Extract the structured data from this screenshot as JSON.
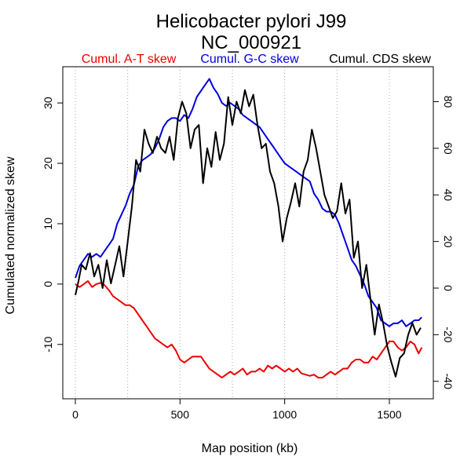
{
  "chart_data": {
    "type": "line",
    "title": "Helicobacter pylori J99",
    "subtitle": "NC_000921",
    "xlabel": "Map position (kb)",
    "ylabel": "Cumulated normalized skew",
    "xlim": [
      -60,
      1710
    ],
    "ylim": [
      -19,
      36
    ],
    "y2lim": [
      -47.5,
      95
    ],
    "x_ticks": [
      0,
      500,
      1000,
      1500
    ],
    "y_ticks": [
      -10,
      0,
      10,
      20,
      30
    ],
    "y2_ticks": [
      -40,
      -20,
      0,
      20,
      40,
      60,
      80
    ],
    "vgrid": [
      0,
      250,
      500,
      750,
      1000,
      1250,
      1500
    ],
    "grid": "vertical-dotted",
    "series": [
      {
        "name": "Cumul. A-T skew",
        "color": "#ee0000",
        "axis": "left",
        "x": [
          0,
          20,
          40,
          60,
          80,
          100,
          120,
          140,
          160,
          180,
          200,
          220,
          240,
          260,
          280,
          300,
          320,
          340,
          360,
          380,
          400,
          420,
          440,
          460,
          480,
          500,
          520,
          540,
          560,
          580,
          600,
          620,
          640,
          660,
          680,
          700,
          720,
          740,
          760,
          780,
          800,
          820,
          840,
          860,
          880,
          900,
          920,
          940,
          960,
          980,
          1000,
          1020,
          1040,
          1060,
          1080,
          1100,
          1120,
          1140,
          1160,
          1180,
          1200,
          1220,
          1240,
          1260,
          1280,
          1300,
          1320,
          1340,
          1360,
          1380,
          1400,
          1420,
          1440,
          1460,
          1480,
          1500,
          1520,
          1540,
          1560,
          1580,
          1600,
          1620,
          1640,
          1655
        ],
        "values": [
          0,
          -0.5,
          0,
          0.5,
          -0.5,
          0,
          0.2,
          -0.2,
          -1,
          -2,
          -2.5,
          -3,
          -3.5,
          -3.5,
          -4,
          -5,
          -6,
          -7,
          -8,
          -9,
          -9.5,
          -10,
          -10.5,
          -10,
          -11,
          -12.5,
          -13,
          -12.5,
          -12,
          -12,
          -12,
          -13,
          -14,
          -14.5,
          -15,
          -15.5,
          -15,
          -14.5,
          -15,
          -14.5,
          -14,
          -15,
          -14.5,
          -14.5,
          -14,
          -14.5,
          -13.5,
          -14,
          -13.5,
          -14,
          -14.5,
          -14,
          -14.5,
          -14,
          -14.8,
          -15,
          -15.2,
          -15,
          -15.5,
          -15.5,
          -15,
          -14.5,
          -15,
          -14.5,
          -14,
          -14,
          -13,
          -12.5,
          -12.5,
          -13,
          -13,
          -12,
          -12.5,
          -11.5,
          -10.5,
          -9.5,
          -9.5,
          -10.5,
          -11,
          -10.5,
          -9.5,
          -10,
          -11.5,
          -10.5
        ]
      },
      {
        "name": "Cumul. G-C skew",
        "color": "#0000dd",
        "axis": "left",
        "x": [
          0,
          20,
          40,
          60,
          80,
          100,
          120,
          140,
          160,
          180,
          200,
          220,
          240,
          260,
          280,
          300,
          320,
          340,
          360,
          380,
          400,
          420,
          440,
          460,
          480,
          500,
          520,
          540,
          560,
          580,
          600,
          620,
          640,
          660,
          680,
          700,
          720,
          740,
          760,
          780,
          800,
          820,
          840,
          860,
          880,
          900,
          920,
          940,
          960,
          980,
          1000,
          1020,
          1040,
          1060,
          1080,
          1100,
          1120,
          1140,
          1160,
          1180,
          1200,
          1220,
          1240,
          1260,
          1280,
          1300,
          1320,
          1340,
          1360,
          1380,
          1400,
          1420,
          1440,
          1460,
          1480,
          1500,
          1520,
          1540,
          1560,
          1580,
          1600,
          1620,
          1640,
          1655
        ],
        "values": [
          1,
          3,
          4,
          5,
          4.5,
          5,
          4.5,
          5.5,
          6.5,
          7.5,
          10,
          11.5,
          13,
          15,
          16.5,
          19.5,
          20.5,
          21,
          21.5,
          22.5,
          24,
          26,
          27,
          27.5,
          27.5,
          27,
          28,
          27.5,
          29,
          31,
          32,
          33,
          34,
          32.5,
          31.5,
          30,
          29.5,
          30,
          29.5,
          29,
          28,
          27.5,
          27,
          26.5,
          26,
          25,
          24,
          23,
          22,
          21,
          20,
          19.5,
          19,
          18.5,
          18,
          17.5,
          17,
          15,
          14,
          12.5,
          12,
          12,
          11.5,
          10,
          8,
          6,
          4,
          3,
          1.5,
          0,
          -2,
          -3,
          -4,
          -6,
          -6.5,
          -7,
          -6.5,
          -6.5,
          -6,
          -7,
          -6.5,
          -6,
          -6,
          -5.5
        ]
      },
      {
        "name": "Cumul. CDS skew",
        "color": "#000000",
        "axis": "right",
        "x": [
          0,
          15,
          30,
          50,
          70,
          90,
          110,
          130,
          150,
          170,
          190,
          210,
          230,
          250,
          270,
          290,
          310,
          330,
          350,
          370,
          390,
          410,
          430,
          450,
          470,
          490,
          510,
          530,
          550,
          570,
          590,
          610,
          630,
          650,
          670,
          690,
          710,
          730,
          750,
          770,
          790,
          810,
          830,
          850,
          870,
          890,
          910,
          930,
          950,
          970,
          990,
          1010,
          1030,
          1050,
          1070,
          1090,
          1110,
          1130,
          1150,
          1170,
          1190,
          1210,
          1230,
          1250,
          1270,
          1290,
          1310,
          1330,
          1350,
          1370,
          1390,
          1410,
          1430,
          1450,
          1470,
          1490,
          1510,
          1530,
          1550,
          1570,
          1590,
          1610,
          1630,
          1650
        ],
        "values": [
          -3,
          3,
          10,
          8,
          15,
          5,
          10,
          0,
          12,
          2,
          10,
          18,
          5,
          20,
          35,
          55,
          50,
          68,
          62,
          58,
          65,
          60,
          58,
          65,
          55,
          73,
          80,
          75,
          60,
          68,
          70,
          45,
          60,
          52,
          67,
          55,
          62,
          82,
          70,
          80,
          75,
          85,
          78,
          83,
          70,
          60,
          62,
          50,
          45,
          35,
          20,
          30,
          37,
          45,
          35,
          50,
          55,
          68,
          60,
          50,
          40,
          35,
          30,
          33,
          45,
          32,
          38,
          13,
          20,
          0,
          10,
          -5,
          -20,
          -7,
          -15,
          -25,
          -32,
          -38,
          -30,
          -28,
          -20,
          -15,
          -20,
          -17
        ]
      }
    ]
  }
}
